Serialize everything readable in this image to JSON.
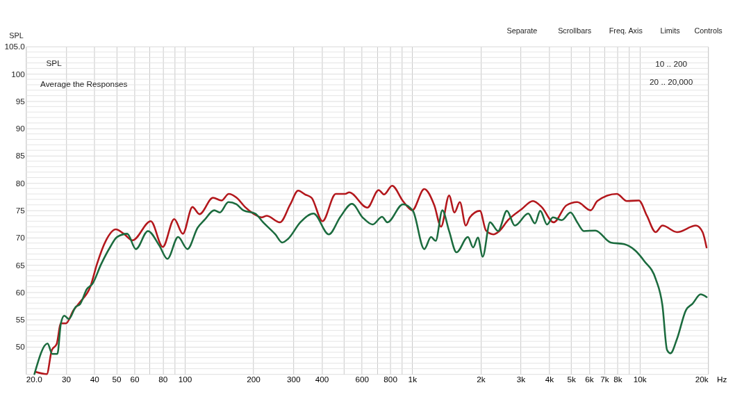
{
  "chart_data": {
    "type": "line",
    "ylabel": "SPL",
    "xlim": [
      20,
      20000
    ],
    "ylim": [
      45,
      105
    ],
    "log": "x",
    "grid": true,
    "marker": "none",
    "line_style": "solid",
    "xticks": [
      {
        "value": 20,
        "label": "20.0"
      },
      30,
      40,
      50,
      60,
      {
        "value": 70,
        "label": null
      },
      80,
      {
        "value": 90,
        "label": null
      },
      100,
      200,
      300,
      400,
      {
        "value": 500,
        "label": null
      },
      600,
      {
        "value": 700,
        "label": null
      },
      800,
      {
        "value": 900,
        "label": null
      },
      {
        "value": 1000,
        "label": "1k"
      },
      {
        "value": 2000,
        "label": "2k"
      },
      {
        "value": 3000,
        "label": "3k"
      },
      {
        "value": 4000,
        "label": "4k"
      },
      {
        "value": 5000,
        "label": "5k"
      },
      {
        "value": 6000,
        "label": "6k"
      },
      {
        "value": 7000,
        "label": "7k"
      },
      {
        "value": 8000,
        "label": "8k"
      },
      {
        "value": 9000,
        "label": null
      },
      {
        "value": 10000,
        "label": "10k"
      },
      {
        "value": 20000,
        "label": "20k"
      }
    ],
    "xlabel": "Hz",
    "yticks": [
      {
        "value": 46,
        "label": null
      },
      {
        "value": 47,
        "label": null
      },
      {
        "value": 48,
        "label": null
      },
      {
        "value": 49,
        "label": null
      },
      50,
      {
        "value": 51,
        "label": null
      },
      {
        "value": 52,
        "label": null
      },
      {
        "value": 53,
        "label": null
      },
      {
        "value": 54,
        "label": null
      },
      55,
      {
        "value": 56,
        "label": null
      },
      {
        "value": 57,
        "label": null
      },
      {
        "value": 58,
        "label": null
      },
      {
        "value": 59,
        "label": null
      },
      60,
      {
        "value": 61,
        "label": null
      },
      {
        "value": 62,
        "label": null
      },
      {
        "value": 63,
        "label": null
      },
      {
        "value": 64,
        "label": null
      },
      65,
      {
        "value": 66,
        "label": null
      },
      {
        "value": 67,
        "label": null
      },
      {
        "value": 68,
        "label": null
      },
      {
        "value": 69,
        "label": null
      },
      70,
      {
        "value": 71,
        "label": null
      },
      {
        "value": 72,
        "label": null
      },
      {
        "value": 73,
        "label": null
      },
      {
        "value": 74,
        "label": null
      },
      75,
      {
        "value": 76,
        "label": null
      },
      {
        "value": 77,
        "label": null
      },
      {
        "value": 78,
        "label": null
      },
      {
        "value": 79,
        "label": null
      },
      80,
      {
        "value": 81,
        "label": null
      },
      {
        "value": 82,
        "label": null
      },
      {
        "value": 83,
        "label": null
      },
      {
        "value": 84,
        "label": null
      },
      85,
      {
        "value": 86,
        "label": null
      },
      {
        "value": 87,
        "label": null
      },
      {
        "value": 88,
        "label": null
      },
      {
        "value": 89,
        "label": null
      },
      90,
      {
        "value": 91,
        "label": null
      },
      {
        "value": 92,
        "label": null
      },
      {
        "value": 93,
        "label": null
      },
      {
        "value": 94,
        "label": null
      },
      95,
      {
        "value": 96,
        "label": null
      },
      {
        "value": 97,
        "label": null
      },
      {
        "value": 98,
        "label": null
      },
      {
        "value": 99,
        "label": null
      },
      100,
      {
        "value": 101,
        "label": null
      },
      {
        "value": 102,
        "label": null
      },
      {
        "value": 103,
        "label": null
      },
      {
        "value": 104,
        "label": null
      },
      {
        "value": 105,
        "label": "105.0"
      }
    ],
    "annotations": [
      "SPL",
      "Average the Responses",
      "10 .. 200",
      "20 .. 20,000",
      "Separate",
      "Scrollbars",
      "Freq. Axis",
      "Limits",
      "Controls"
    ],
    "series": [
      {
        "color": "#b3171c",
        "x": [
          22,
          24.7,
          26,
          27.3,
          28.5,
          30,
          32.4,
          34.6,
          38.4,
          41.1,
          44.9,
          49.7,
          53.9,
          58.9,
          70.8,
          80,
          89.8,
          98,
          108,
          116,
          133,
          145,
          156,
          169,
          184,
          200,
          218,
          229,
          262,
          291,
          315,
          338,
          361,
          403,
          461,
          507,
          528,
          635,
          712,
          752,
          816,
          910,
          1000,
          1130,
          1251,
          1339,
          1453,
          1534,
          1620,
          1721,
          1793,
          1986,
          2111,
          2275,
          2417,
          2640,
          3027,
          3396,
          3710,
          4190,
          4766,
          5320,
          6095,
          6516,
          7943,
          8790,
          9931,
          10770,
          11770,
          12600,
          14620,
          17700,
          18930,
          19700
        ],
        "values": [
          45.4,
          45,
          49.4,
          50.5,
          54.3,
          54.3,
          56.7,
          58.2,
          61,
          65.2,
          69.4,
          71.5,
          70.7,
          69.5,
          73,
          68.3,
          73.4,
          70.7,
          75.6,
          74.3,
          77.3,
          76.8,
          78,
          77.3,
          75.6,
          74.4,
          73.7,
          74,
          72.8,
          76.1,
          78.6,
          77.9,
          77.3,
          73,
          78,
          78,
          78.3,
          75.5,
          78.7,
          77.9,
          79.5,
          76.7,
          75,
          78.9,
          75.9,
          72,
          77.7,
          74.6,
          76.5,
          72.2,
          73.7,
          74.9,
          71.3,
          70.6,
          71.2,
          73.2,
          75.2,
          76.7,
          75.6,
          72.8,
          75.9,
          76.5,
          75,
          76.7,
          78,
          76.7,
          76.8,
          74,
          71,
          72.2,
          71,
          72.2,
          71,
          68.2
        ]
      },
      {
        "color": "#1b6b3e",
        "x": [
          21.8,
          24.9,
          26.1,
          27.5,
          28.5,
          29.5,
          30.9,
          33.1,
          34.6,
          37.1,
          39.2,
          42.8,
          47,
          50.3,
          55.8,
          60.9,
          68.8,
          77.3,
          83.8,
          93.4,
          102.7,
          113.8,
          121.8,
          134.8,
          142.4,
          155.5,
          168.7,
          180.8,
          204,
          221,
          250,
          268,
          285,
          322,
          368,
          430,
          483,
          543,
          605,
          670,
          737,
          778,
          910,
          1007,
          1130,
          1210,
          1268,
          1357,
          1453,
          1566,
          1758,
          1854,
          1945,
          2042,
          2199,
          2387,
          2608,
          2827,
          3238,
          3466,
          3657,
          3917,
          4160,
          4545,
          4970,
          5320,
          5690,
          6387,
          7463,
          8551,
          9593,
          10490,
          11780,
          12600,
          13210,
          13670,
          14620,
          15990,
          17110,
          18550,
          19720
        ],
        "values": [
          45,
          50.6,
          48.7,
          48.7,
          54.3,
          55.7,
          55.1,
          57.3,
          57.8,
          60.6,
          61.5,
          65.1,
          68.3,
          70.1,
          70.7,
          67.9,
          71.2,
          68.5,
          66.1,
          70.1,
          67.9,
          71.8,
          73.2,
          75,
          74.6,
          76.5,
          76.1,
          75,
          74.4,
          72.8,
          70.6,
          69.1,
          69.8,
          72.8,
          74.4,
          70.6,
          73.8,
          76.2,
          73.7,
          72.4,
          73.8,
          72.8,
          76.1,
          74.9,
          67.9,
          70.1,
          69.4,
          75,
          71.2,
          67.3,
          70.1,
          68.2,
          70,
          66.5,
          72.8,
          71.2,
          74.9,
          72.2,
          74.4,
          72.6,
          74.9,
          72.4,
          73.7,
          73.2,
          74.6,
          72.8,
          71.2,
          71.3,
          69.1,
          68.8,
          67.6,
          65.7,
          62.4,
          57.6,
          49.4,
          48.8,
          51.5,
          56.7,
          57.9,
          59.6,
          59.1
        ]
      }
    ]
  }
}
